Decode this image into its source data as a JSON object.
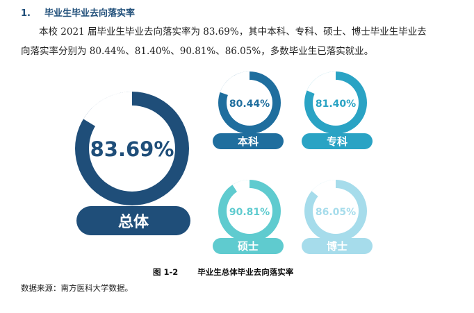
{
  "heading": {
    "number": "1.",
    "title": "毕业生毕业去向落实率"
  },
  "paragraph": {
    "line1": "本校 2021 届毕业生毕业去向落实率为 83.69%，其中本科、专科、硕士、博士毕业生毕业去",
    "line2": "向落实率分别为 80.44%、81.40%、90.81%、86.05%，多数毕业生已落实就业。"
  },
  "chart_data": {
    "type": "donut",
    "series": [
      {
        "name": "总体",
        "value": 83.69,
        "label": "83.69%",
        "color": "#1f4e79"
      },
      {
        "name": "本科",
        "value": 80.44,
        "label": "80.44%",
        "color": "#1f6e9e"
      },
      {
        "name": "专科",
        "value": 81.4,
        "label": "81.40%",
        "color": "#2aa3c4"
      },
      {
        "name": "硕士",
        "value": 90.81,
        "label": "90.81%",
        "color": "#5fcbcf"
      },
      {
        "name": "博士",
        "value": 86.05,
        "label": "86.05%",
        "color": "#a6dceb"
      }
    ],
    "remainder_color": "#ffffff"
  },
  "figure": {
    "label": "图 1-2",
    "title": "毕业生总体毕业去向落实率"
  },
  "source": "数据来源：南方医科大学数据。"
}
